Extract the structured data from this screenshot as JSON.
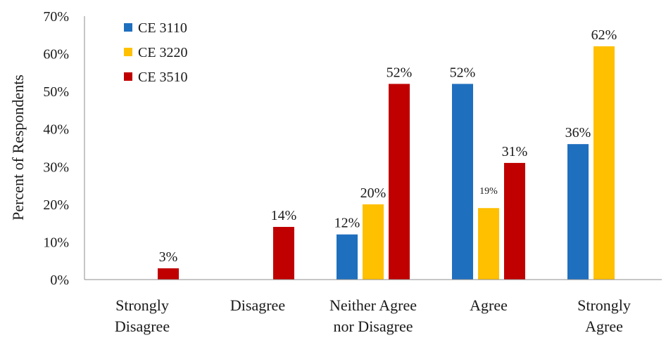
{
  "chart_data": {
    "type": "bar",
    "title": "",
    "xlabel": "",
    "ylabel": "Percent of Respondents",
    "ylim": [
      0,
      70
    ],
    "yticks": [
      0,
      10,
      20,
      30,
      40,
      50,
      60,
      70
    ],
    "ytick_suffix": "%",
    "grid": false,
    "legend_position": "top-left",
    "categories": [
      [
        "Strongly",
        "Disagree"
      ],
      [
        "Disagree"
      ],
      [
        "Neither Agree",
        "nor Disagree"
      ],
      [
        "Agree"
      ],
      [
        "Strongly",
        "Agree"
      ]
    ],
    "series": [
      {
        "name": "CE 3110",
        "color": "#1F6FBF",
        "values": [
          null,
          null,
          12,
          52,
          36
        ]
      },
      {
        "name": "CE 3220",
        "color": "#FFC000",
        "values": [
          null,
          null,
          20,
          19,
          62
        ]
      },
      {
        "name": "CE 3510",
        "color": "#C00000",
        "values": [
          3,
          14,
          52,
          31,
          null
        ]
      }
    ],
    "data_labels": [
      [
        null,
        null,
        "12%",
        "52%",
        "36%"
      ],
      [
        null,
        null,
        "20%",
        "19%",
        "62%"
      ],
      [
        "3%",
        "14%",
        "52%",
        "31%",
        null
      ]
    ]
  }
}
